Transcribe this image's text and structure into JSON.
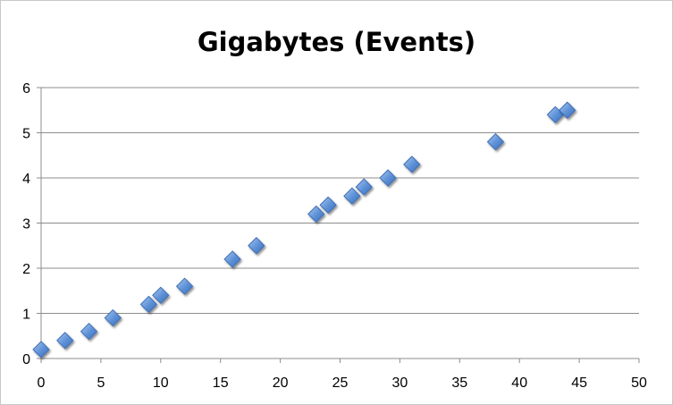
{
  "chart_data": {
    "type": "scatter",
    "title": "Gigabytes (Events)",
    "xlabel": "",
    "ylabel": "",
    "xlim": [
      0,
      50
    ],
    "ylim": [
      0,
      6
    ],
    "x_ticks": [
      0,
      5,
      10,
      15,
      20,
      25,
      30,
      35,
      40,
      45,
      50
    ],
    "y_ticks": [
      0,
      1,
      2,
      3,
      4,
      5,
      6
    ],
    "grid": "horizontal",
    "legend": "none",
    "marker": "diamond",
    "marker_color": "#5b8fd6",
    "series": [
      {
        "points": [
          {
            "x": 0,
            "y": 0.2
          },
          {
            "x": 2,
            "y": 0.4
          },
          {
            "x": 4,
            "y": 0.6
          },
          {
            "x": 6,
            "y": 0.9
          },
          {
            "x": 9,
            "y": 1.2
          },
          {
            "x": 10,
            "y": 1.4
          },
          {
            "x": 12,
            "y": 1.6
          },
          {
            "x": 16,
            "y": 2.2
          },
          {
            "x": 18,
            "y": 2.5
          },
          {
            "x": 23,
            "y": 3.2
          },
          {
            "x": 24,
            "y": 3.4
          },
          {
            "x": 26,
            "y": 3.6
          },
          {
            "x": 27,
            "y": 3.8
          },
          {
            "x": 29,
            "y": 4.0
          },
          {
            "x": 31,
            "y": 4.3
          },
          {
            "x": 38,
            "y": 4.8
          },
          {
            "x": 43,
            "y": 5.4
          },
          {
            "x": 44,
            "y": 5.5
          }
        ]
      }
    ]
  }
}
